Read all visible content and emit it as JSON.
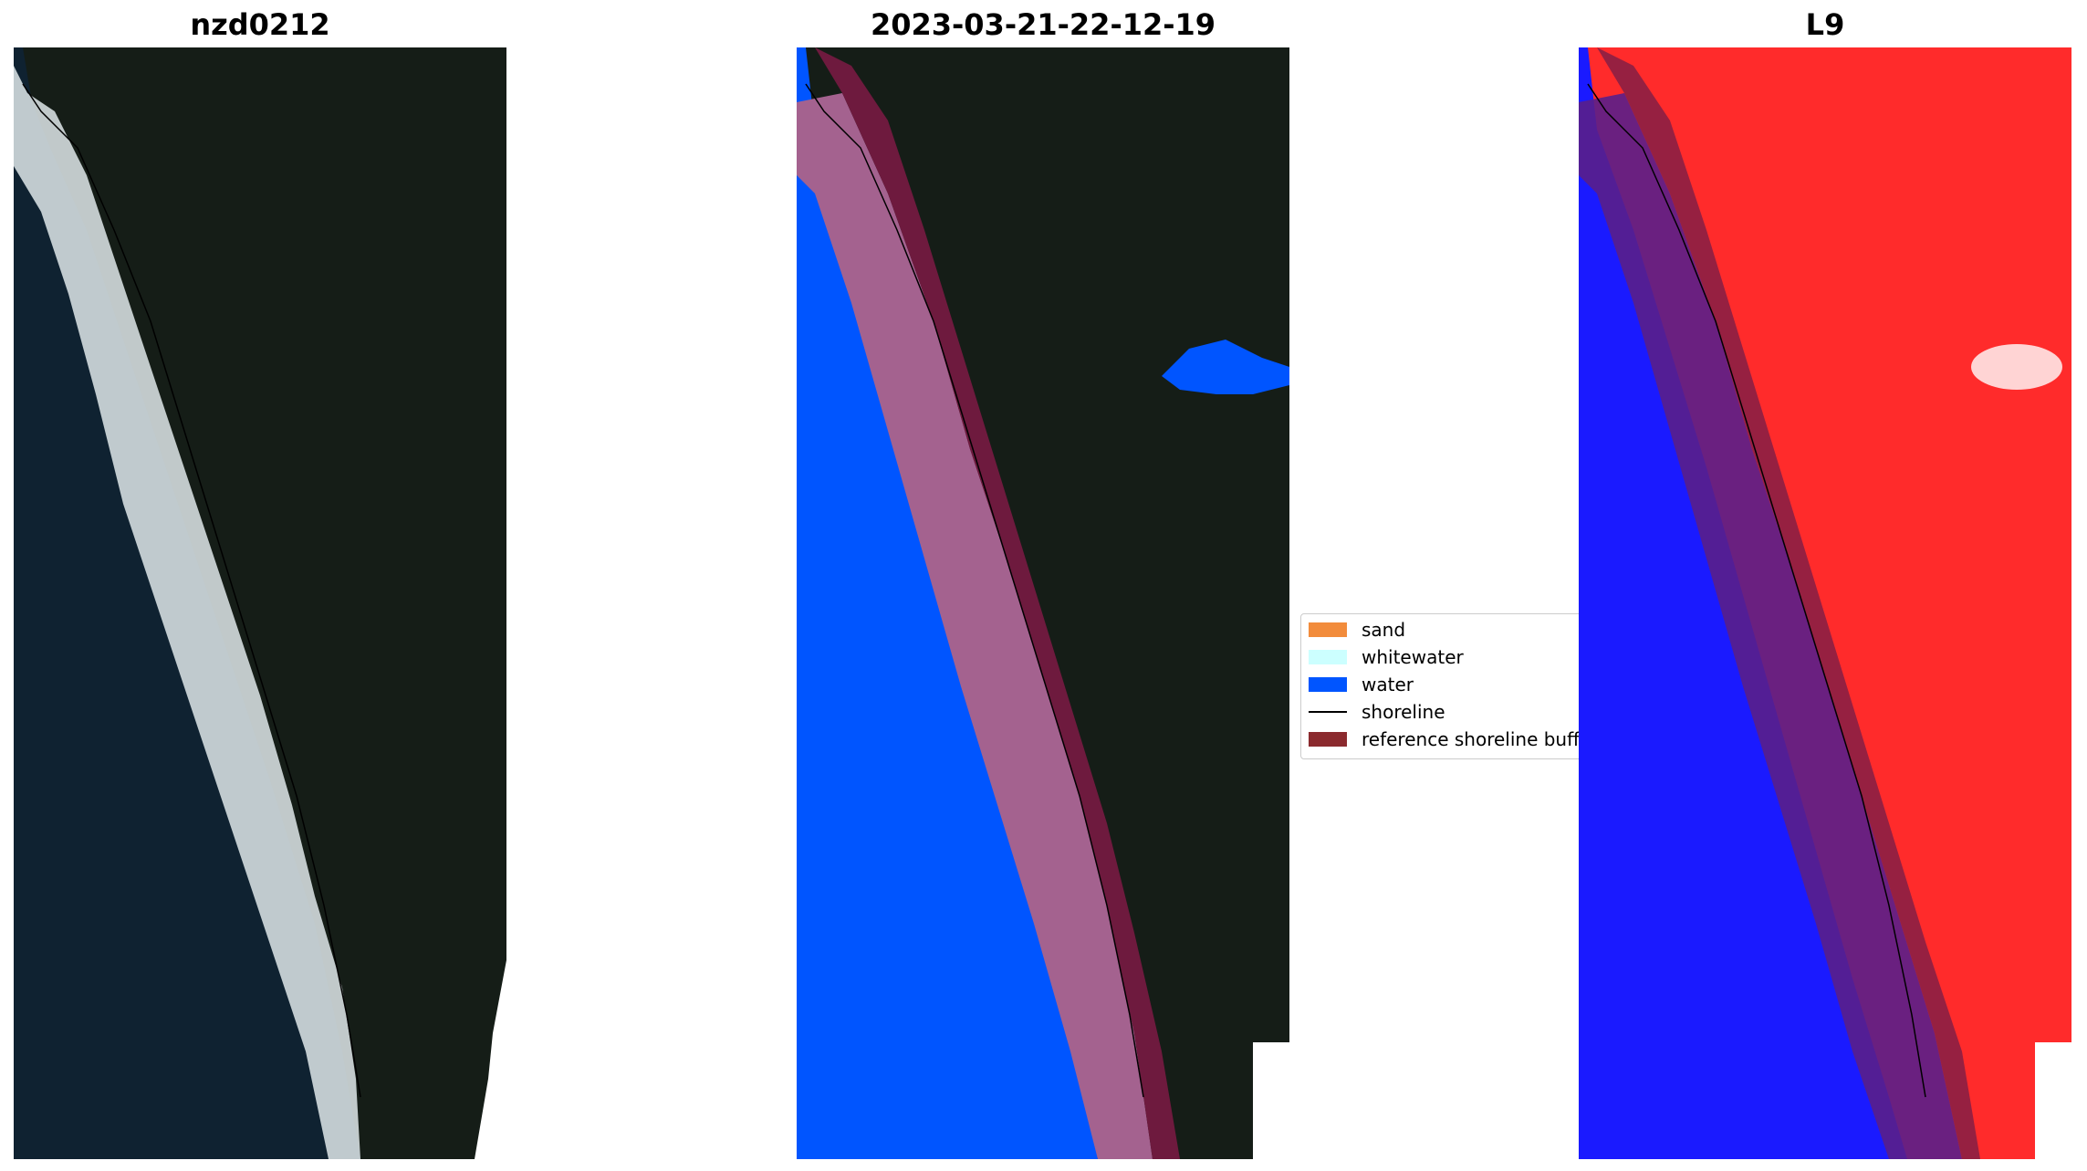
{
  "panels": [
    {
      "title": "nzd0212"
    },
    {
      "title": "2023-03-21-22-12-19"
    },
    {
      "title": "L9"
    }
  ],
  "legend": {
    "items": [
      {
        "label": "sand",
        "color": "#f28c3c",
        "kind": "patch"
      },
      {
        "label": "whitewater",
        "color": "#ccffff",
        "kind": "patch"
      },
      {
        "label": "water",
        "color": "#0055ff",
        "kind": "patch"
      },
      {
        "label": "shoreline",
        "color": "#000000",
        "kind": "line"
      },
      {
        "label": "reference shoreline buffer",
        "color": "#8b2a2e",
        "kind": "patch"
      }
    ]
  },
  "colors": {
    "ocean_dark": "#0e2130",
    "land_dark": "#151d17",
    "surf_white": "#dfe7ea",
    "buffer_maroon": "#6e1a3e",
    "buffer_sand_mix": "#a4628f",
    "index_red": "#ff2b2b",
    "index_blue": "#1a1aff",
    "buffer_purple": "#5a1f8a"
  }
}
